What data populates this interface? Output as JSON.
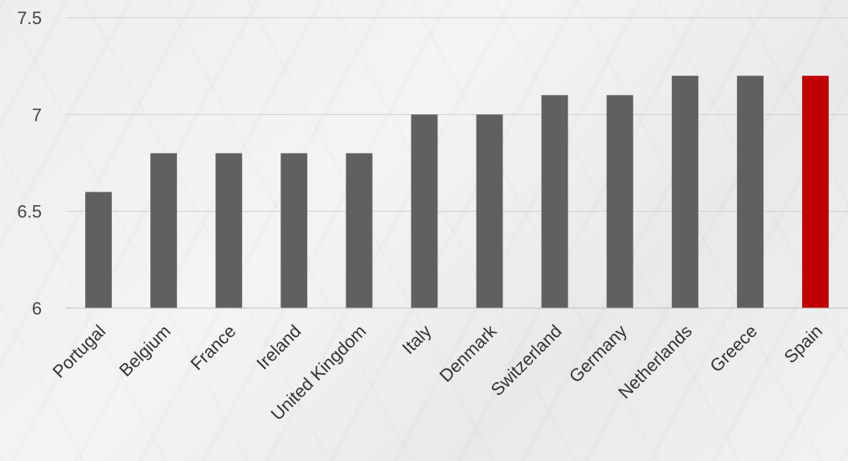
{
  "chart_data": {
    "type": "bar",
    "title": "",
    "xlabel": "",
    "ylabel": "",
    "ylim": [
      6,
      7.5
    ],
    "yticks": [
      "6",
      "6.5",
      "7",
      "7.5"
    ],
    "grid": true,
    "categories": [
      "Portugal",
      "Belgium",
      "France",
      "Ireland",
      "United Kingdom",
      "Italy",
      "Denmark",
      "Switzerland",
      "Germany",
      "Netherlands",
      "Greece",
      "Spain"
    ],
    "values": [
      6.6,
      6.8,
      6.8,
      6.8,
      6.8,
      7.0,
      7.0,
      7.1,
      7.1,
      7.2,
      7.2,
      7.2
    ],
    "colors": {
      "default": "#606060",
      "highlight": "#c00000",
      "gridline": "#d0d0d0",
      "axis": "#bfbfbf"
    },
    "highlight_category": "Spain"
  }
}
